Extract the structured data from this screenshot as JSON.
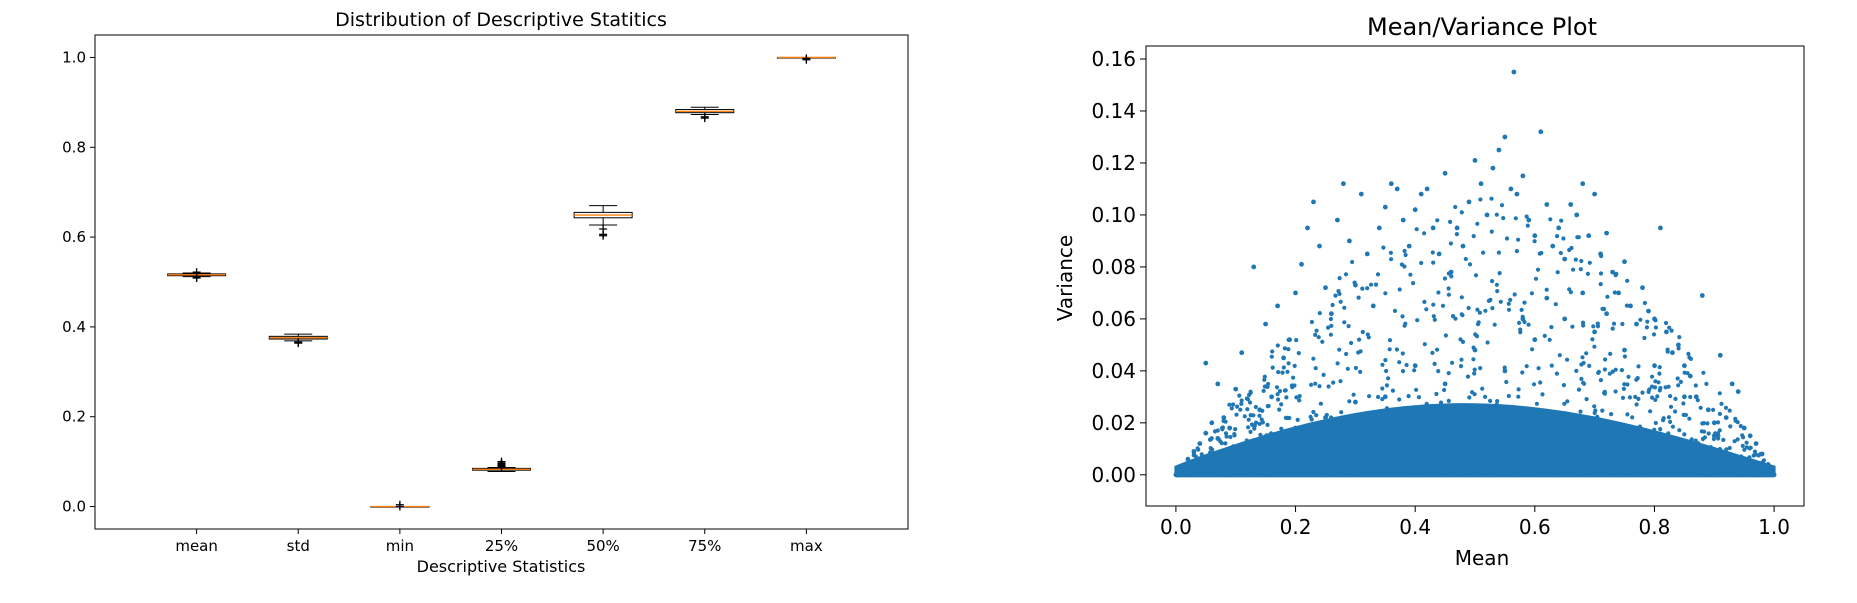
{
  "colors": {
    "box_edge": "#000000",
    "median_line": "#ff7f0e",
    "scatter_point": "#1f77b4",
    "background": "#ffffff"
  },
  "chart_data": [
    {
      "type": "box",
      "title": "Distribution of Descriptive Statitics",
      "xlabel": "Descriptive Statistics",
      "ylabel": "",
      "ylim": [
        -0.05,
        1.05
      ],
      "yticks": [
        0.0,
        0.2,
        0.4,
        0.6,
        0.8,
        1.0
      ],
      "ytick_labels": [
        "0.0",
        "0.2",
        "0.4",
        "0.6",
        "0.8",
        "1.0"
      ],
      "grid": false,
      "categories": [
        "mean",
        "std",
        "min",
        "25%",
        "50%",
        "75%",
        "max"
      ],
      "boxes": [
        {
          "label": "mean",
          "whislo": 0.512,
          "q1": 0.514,
          "med": 0.516,
          "q3": 0.518,
          "whishi": 0.52,
          "fliers": [
            0.509,
            0.511,
            0.522
          ]
        },
        {
          "label": "std",
          "whislo": 0.369,
          "q1": 0.373,
          "med": 0.376,
          "q3": 0.379,
          "whishi": 0.384,
          "fliers": [
            0.364,
            0.366
          ]
        },
        {
          "label": "min",
          "whislo": 0.0,
          "q1": 0.0,
          "med": 0.0,
          "q3": 0.0,
          "whishi": 0.0,
          "fliers": [
            0.0,
            0.004
          ]
        },
        {
          "label": "25%",
          "whislo": 0.078,
          "q1": 0.081,
          "med": 0.083,
          "q3": 0.085,
          "whishi": 0.087,
          "fliers": [
            0.089,
            0.091,
            0.093,
            0.095,
            0.097,
            0.1
          ]
        },
        {
          "label": "50%",
          "whislo": 0.627,
          "q1": 0.643,
          "med": 0.649,
          "q3": 0.655,
          "whishi": 0.67,
          "fliers": [
            0.618,
            0.606,
            0.603
          ]
        },
        {
          "label": "75%",
          "whislo": 0.873,
          "q1": 0.877,
          "med": 0.88,
          "q3": 0.884,
          "whishi": 0.889,
          "fliers": [
            0.868,
            0.865
          ]
        },
        {
          "label": "max",
          "whislo": 1.0,
          "q1": 1.0,
          "med": 1.0,
          "q3": 1.0,
          "whishi": 1.0,
          "fliers": [
            0.995,
            0.998
          ]
        }
      ]
    },
    {
      "type": "scatter",
      "title": "Mean/Variance Plot",
      "xlabel": "Mean",
      "ylabel": "Variance",
      "xlim": [
        -0.05,
        1.05
      ],
      "ylim": [
        -0.012,
        0.165
      ],
      "xticks": [
        0.0,
        0.2,
        0.4,
        0.6,
        0.8,
        1.0
      ],
      "xtick_labels": [
        "0.0",
        "0.2",
        "0.4",
        "0.6",
        "0.8",
        "1.0"
      ],
      "yticks": [
        0.0,
        0.02,
        0.04,
        0.06,
        0.08,
        0.1,
        0.12,
        0.14,
        0.16
      ],
      "ytick_labels": [
        "0.00",
        "0.02",
        "0.04",
        "0.06",
        "0.08",
        "0.10",
        "0.12",
        "0.14",
        "0.16"
      ],
      "grid": false,
      "points": [
        [
          0.0,
          0.0
        ],
        [
          0.01,
          0.002
        ],
        [
          0.02,
          0.006
        ],
        [
          0.03,
          0.009
        ],
        [
          0.04,
          0.012
        ],
        [
          0.05,
          0.016
        ],
        [
          0.06,
          0.02
        ],
        [
          0.07,
          0.014
        ],
        [
          0.08,
          0.022
        ],
        [
          0.09,
          0.018
        ],
        [
          0.05,
          0.043
        ],
        [
          0.07,
          0.035
        ],
        [
          0.1,
          0.033
        ],
        [
          0.11,
          0.047
        ],
        [
          0.13,
          0.08
        ],
        [
          0.15,
          0.058
        ],
        [
          0.17,
          0.065
        ],
        [
          0.12,
          0.012
        ],
        [
          0.14,
          0.025
        ],
        [
          0.16,
          0.03
        ],
        [
          0.18,
          0.045
        ],
        [
          0.19,
          0.052
        ],
        [
          0.2,
          0.07
        ],
        [
          0.21,
          0.081
        ],
        [
          0.22,
          0.095
        ],
        [
          0.23,
          0.105
        ],
        [
          0.24,
          0.088
        ],
        [
          0.25,
          0.072
        ],
        [
          0.26,
          0.062
        ],
        [
          0.27,
          0.098
        ],
        [
          0.28,
          0.112
        ],
        [
          0.29,
          0.09
        ],
        [
          0.3,
          0.073
        ],
        [
          0.31,
          0.108
        ],
        [
          0.32,
          0.085
        ],
        [
          0.33,
          0.065
        ],
        [
          0.34,
          0.095
        ],
        [
          0.35,
          0.103
        ],
        [
          0.36,
          0.112
        ],
        [
          0.37,
          0.11
        ],
        [
          0.38,
          0.098
        ],
        [
          0.39,
          0.088
        ],
        [
          0.4,
          0.102
        ],
        [
          0.41,
          0.108
        ],
        [
          0.42,
          0.11
        ],
        [
          0.43,
          0.095
        ],
        [
          0.44,
          0.085
        ],
        [
          0.45,
          0.116
        ],
        [
          0.46,
          0.078
        ],
        [
          0.47,
          0.095
        ],
        [
          0.48,
          0.088
        ],
        [
          0.49,
          0.105
        ],
        [
          0.5,
          0.121
        ],
        [
          0.51,
          0.112
        ],
        [
          0.52,
          0.1
        ],
        [
          0.53,
          0.118
        ],
        [
          0.54,
          0.125
        ],
        [
          0.55,
          0.13
        ],
        [
          0.56,
          0.11
        ],
        [
          0.565,
          0.155
        ],
        [
          0.57,
          0.108
        ],
        [
          0.58,
          0.115
        ],
        [
          0.59,
          0.098
        ],
        [
          0.6,
          0.092
        ],
        [
          0.61,
          0.132
        ],
        [
          0.62,
          0.104
        ],
        [
          0.63,
          0.088
        ],
        [
          0.64,
          0.095
        ],
        [
          0.65,
          0.083
        ],
        [
          0.66,
          0.104
        ],
        [
          0.67,
          0.1
        ],
        [
          0.68,
          0.112
        ],
        [
          0.69,
          0.092
        ],
        [
          0.7,
          0.108
        ],
        [
          0.71,
          0.085
        ],
        [
          0.72,
          0.093
        ],
        [
          0.73,
          0.078
        ],
        [
          0.74,
          0.07
        ],
        [
          0.75,
          0.082
        ],
        [
          0.76,
          0.065
        ],
        [
          0.77,
          0.058
        ],
        [
          0.78,
          0.072
        ],
        [
          0.79,
          0.063
        ],
        [
          0.8,
          0.06
        ],
        [
          0.81,
          0.095
        ],
        [
          0.82,
          0.055
        ],
        [
          0.83,
          0.047
        ],
        [
          0.84,
          0.05
        ],
        [
          0.85,
          0.042
        ],
        [
          0.86,
          0.038
        ],
        [
          0.87,
          0.03
        ],
        [
          0.88,
          0.069
        ],
        [
          0.89,
          0.025
        ],
        [
          0.9,
          0.02
        ],
        [
          0.91,
          0.046
        ],
        [
          0.92,
          0.022
        ],
        [
          0.93,
          0.035
        ],
        [
          0.94,
          0.032
        ],
        [
          0.95,
          0.018
        ],
        [
          0.96,
          0.015
        ],
        [
          0.97,
          0.012
        ],
        [
          0.98,
          0.008
        ],
        [
          0.99,
          0.004
        ],
        [
          1.0,
          0.0
        ],
        [
          0.45,
          0.035
        ],
        [
          0.5,
          0.048
        ],
        [
          0.55,
          0.04
        ],
        [
          0.6,
          0.052
        ],
        [
          0.65,
          0.06
        ],
        [
          0.7,
          0.055
        ],
        [
          0.75,
          0.048
        ],
        [
          0.8,
          0.042
        ],
        [
          0.35,
          0.03
        ],
        [
          0.4,
          0.042
        ],
        [
          0.3,
          0.028
        ],
        [
          0.25,
          0.022
        ],
        [
          0.2,
          0.018
        ],
        [
          0.15,
          0.014
        ],
        [
          0.85,
          0.03
        ],
        [
          0.9,
          0.015
        ],
        [
          0.62,
          0.068
        ],
        [
          0.68,
          0.07
        ],
        [
          0.72,
          0.062
        ],
        [
          0.58,
          0.06
        ]
      ]
    }
  ]
}
